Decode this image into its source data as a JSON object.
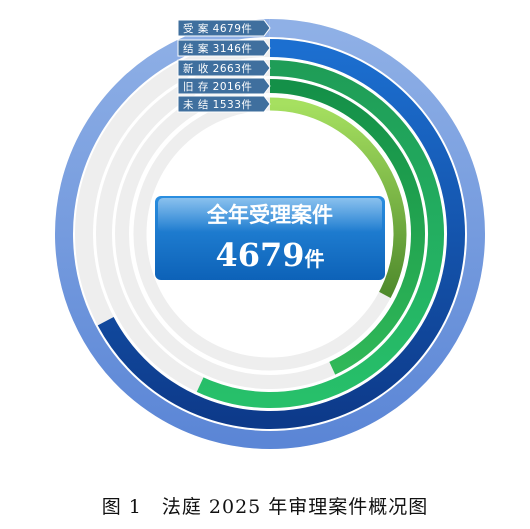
{
  "chart_data": {
    "type": "radial-bar",
    "max": 4679,
    "series": [
      {
        "name": "受 案",
        "value": 4679,
        "unit": "件",
        "color_start": "#8fb0e6",
        "color_end": "#5b86d6"
      },
      {
        "name": "结 案",
        "value": 3146,
        "unit": "件",
        "color_start": "#1c6fd0",
        "color_end": "#0d3a8a"
      },
      {
        "name": "新 收",
        "value": 2663,
        "unit": "件",
        "color_start": "#1f9d57",
        "color_end": "#27c06a"
      },
      {
        "name": "旧 存",
        "value": 2016,
        "unit": "件",
        "color_start": "#149048",
        "color_end": "#30b858"
      },
      {
        "name": "未 结",
        "value": 1533,
        "unit": "件",
        "color_start": "#a6e060",
        "color_end": "#4f8a2c"
      }
    ],
    "center": {
      "title": "全年受理案件",
      "value": "4679",
      "unit": "件"
    },
    "track_color": "#eeeeee"
  },
  "caption": "图 1　法庭 2025 年审理案件概况图"
}
